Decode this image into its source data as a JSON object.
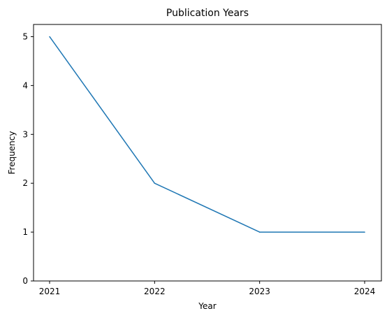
{
  "chart_data": {
    "type": "line",
    "title": "Publication Years",
    "xlabel": "Year",
    "ylabel": "Frequency",
    "categories": [
      "2021",
      "2022",
      "2023",
      "2024"
    ],
    "series": [
      {
        "values": [
          5,
          2,
          1,
          1
        ],
        "color": "#1f77b4"
      }
    ],
    "ylim": [
      0,
      5.25
    ],
    "yticks": [
      "0",
      "1",
      "2",
      "3",
      "4",
      "5"
    ],
    "grid": false,
    "legend": "none"
  }
}
